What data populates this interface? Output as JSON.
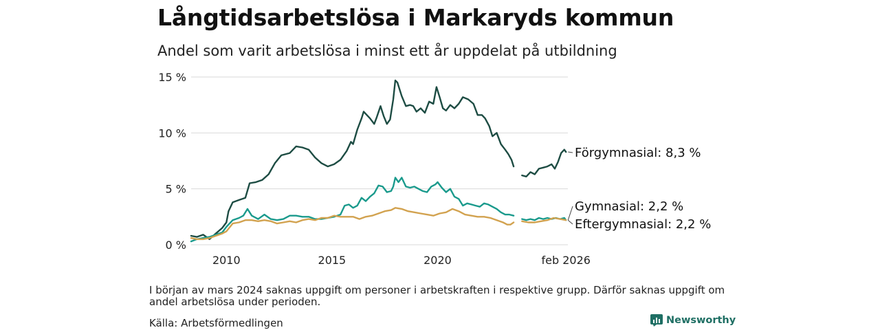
{
  "header": {
    "title": "Långtidsarbetslösa i Markaryds kommun",
    "subtitle": "Andel som varit arbetslösa i minst ett år uppdelat på utbildning"
  },
  "footer": {
    "note": "I början av mars 2024 saknas uppgift om personer i arbetskraften i respektive grupp. Därför saknas uppgift om andel arbetslösa under perioden.",
    "source": "Källa: Arbetsförmedlingen",
    "brand": "Newsworthy"
  },
  "colors": {
    "forgymnasial": "#1d4c43",
    "gymnasial": "#1a9a8c",
    "eftergymnasial": "#d2a24f",
    "grid": "#d9d9d9",
    "brand": "#1f6f64"
  },
  "chart_data": {
    "type": "line",
    "title": "Långtidsarbetslösa i Markaryds kommun",
    "subtitle": "Andel som varit arbetslösa i minst ett år uppdelat på utbildning",
    "xlabel": "",
    "ylabel": "",
    "xlim": [
      2008.33,
      2026.17
    ],
    "ylim": [
      0,
      15
    ],
    "y_ticks": [
      0,
      5,
      10,
      15
    ],
    "y_tick_labels": [
      "0 %",
      "5 %",
      "10 %",
      "15 %"
    ],
    "x_ticks": [
      2010,
      2015,
      2020,
      2026.08
    ],
    "x_tick_labels": [
      "2010",
      "2015",
      "2020",
      "feb 2026"
    ],
    "grid": true,
    "gap": [
      2023.6,
      2024.0
    ],
    "series": [
      {
        "name": "Förgymnasial",
        "end_label": "Förgymnasial: 8,3 %",
        "color": "#1d4c43",
        "points": [
          [
            2008.33,
            0.8
          ],
          [
            2008.6,
            0.7
          ],
          [
            2008.9,
            0.9
          ],
          [
            2009.2,
            0.5
          ],
          [
            2009.5,
            1.0
          ],
          [
            2009.8,
            1.5
          ],
          [
            2010.0,
            2.0
          ],
          [
            2010.1,
            3.0
          ],
          [
            2010.3,
            3.8
          ],
          [
            2010.6,
            4.0
          ],
          [
            2010.9,
            4.2
          ],
          [
            2011.1,
            5.5
          ],
          [
            2011.4,
            5.6
          ],
          [
            2011.7,
            5.8
          ],
          [
            2012.0,
            6.3
          ],
          [
            2012.3,
            7.3
          ],
          [
            2012.6,
            8.0
          ],
          [
            2013.0,
            8.2
          ],
          [
            2013.3,
            8.8
          ],
          [
            2013.6,
            8.7
          ],
          [
            2013.9,
            8.5
          ],
          [
            2014.2,
            7.8
          ],
          [
            2014.5,
            7.3
          ],
          [
            2014.8,
            7.0
          ],
          [
            2015.1,
            7.2
          ],
          [
            2015.4,
            7.6
          ],
          [
            2015.7,
            8.4
          ],
          [
            2015.9,
            9.2
          ],
          [
            2016.0,
            9.0
          ],
          [
            2016.2,
            10.3
          ],
          [
            2016.4,
            11.3
          ],
          [
            2016.5,
            11.9
          ],
          [
            2016.65,
            11.6
          ],
          [
            2016.8,
            11.3
          ],
          [
            2017.0,
            10.8
          ],
          [
            2017.1,
            11.3
          ],
          [
            2017.3,
            12.4
          ],
          [
            2017.45,
            11.5
          ],
          [
            2017.6,
            10.8
          ],
          [
            2017.75,
            11.2
          ],
          [
            2017.9,
            13.0
          ],
          [
            2018.0,
            14.7
          ],
          [
            2018.1,
            14.5
          ],
          [
            2018.3,
            13.3
          ],
          [
            2018.5,
            12.4
          ],
          [
            2018.7,
            12.5
          ],
          [
            2018.85,
            12.4
          ],
          [
            2019.0,
            11.9
          ],
          [
            2019.2,
            12.2
          ],
          [
            2019.4,
            11.8
          ],
          [
            2019.6,
            12.8
          ],
          [
            2019.8,
            12.6
          ],
          [
            2019.95,
            14.1
          ],
          [
            2020.1,
            13.2
          ],
          [
            2020.25,
            12.2
          ],
          [
            2020.4,
            12.0
          ],
          [
            2020.6,
            12.5
          ],
          [
            2020.8,
            12.2
          ],
          [
            2021.0,
            12.6
          ],
          [
            2021.2,
            13.2
          ],
          [
            2021.45,
            13.0
          ],
          [
            2021.7,
            12.6
          ],
          [
            2021.9,
            11.6
          ],
          [
            2022.1,
            11.6
          ],
          [
            2022.25,
            11.3
          ],
          [
            2022.45,
            10.6
          ],
          [
            2022.6,
            9.7
          ],
          [
            2022.8,
            10.0
          ],
          [
            2023.0,
            9.0
          ],
          [
            2023.2,
            8.5
          ],
          [
            2023.35,
            8.1
          ],
          [
            2023.5,
            7.6
          ],
          [
            2023.6,
            7.0
          ],
          [
            2024.0,
            6.2
          ],
          [
            2024.2,
            6.1
          ],
          [
            2024.4,
            6.5
          ],
          [
            2024.6,
            6.3
          ],
          [
            2024.8,
            6.8
          ],
          [
            2025.0,
            6.9
          ],
          [
            2025.2,
            7.0
          ],
          [
            2025.4,
            7.2
          ],
          [
            2025.55,
            6.8
          ],
          [
            2025.7,
            7.4
          ],
          [
            2025.85,
            8.2
          ],
          [
            2026.0,
            8.5
          ],
          [
            2026.08,
            8.3
          ]
        ]
      },
      {
        "name": "Gymnasial",
        "end_label": "Gymnasial: 2,2 %",
        "color": "#1a9a8c",
        "points": [
          [
            2008.33,
            0.3
          ],
          [
            2008.6,
            0.5
          ],
          [
            2008.9,
            0.6
          ],
          [
            2009.2,
            0.7
          ],
          [
            2009.5,
            0.9
          ],
          [
            2009.8,
            1.1
          ],
          [
            2010.0,
            1.6
          ],
          [
            2010.3,
            2.2
          ],
          [
            2010.6,
            2.4
          ],
          [
            2010.8,
            2.6
          ],
          [
            2011.0,
            3.2
          ],
          [
            2011.2,
            2.6
          ],
          [
            2011.5,
            2.3
          ],
          [
            2011.8,
            2.7
          ],
          [
            2012.1,
            2.3
          ],
          [
            2012.4,
            2.2
          ],
          [
            2012.7,
            2.3
          ],
          [
            2013.0,
            2.6
          ],
          [
            2013.3,
            2.6
          ],
          [
            2013.6,
            2.5
          ],
          [
            2013.9,
            2.5
          ],
          [
            2014.2,
            2.3
          ],
          [
            2014.5,
            2.3
          ],
          [
            2014.8,
            2.4
          ],
          [
            2015.1,
            2.5
          ],
          [
            2015.4,
            2.7
          ],
          [
            2015.6,
            3.5
          ],
          [
            2015.8,
            3.6
          ],
          [
            2016.0,
            3.3
          ],
          [
            2016.2,
            3.5
          ],
          [
            2016.4,
            4.2
          ],
          [
            2016.6,
            3.9
          ],
          [
            2016.8,
            4.3
          ],
          [
            2017.0,
            4.6
          ],
          [
            2017.2,
            5.3
          ],
          [
            2017.4,
            5.2
          ],
          [
            2017.6,
            4.7
          ],
          [
            2017.8,
            4.8
          ],
          [
            2017.9,
            5.2
          ],
          [
            2018.0,
            6.0
          ],
          [
            2018.15,
            5.6
          ],
          [
            2018.3,
            6.0
          ],
          [
            2018.5,
            5.2
          ],
          [
            2018.7,
            5.1
          ],
          [
            2018.9,
            5.2
          ],
          [
            2019.1,
            5.0
          ],
          [
            2019.3,
            4.8
          ],
          [
            2019.5,
            4.7
          ],
          [
            2019.7,
            5.2
          ],
          [
            2019.9,
            5.4
          ],
          [
            2020.0,
            5.6
          ],
          [
            2020.2,
            5.1
          ],
          [
            2020.4,
            4.7
          ],
          [
            2020.6,
            5.0
          ],
          [
            2020.8,
            4.3
          ],
          [
            2021.0,
            4.1
          ],
          [
            2021.2,
            3.5
          ],
          [
            2021.4,
            3.7
          ],
          [
            2021.6,
            3.6
          ],
          [
            2021.8,
            3.5
          ],
          [
            2022.0,
            3.4
          ],
          [
            2022.2,
            3.7
          ],
          [
            2022.4,
            3.6
          ],
          [
            2022.6,
            3.4
          ],
          [
            2022.8,
            3.2
          ],
          [
            2023.0,
            2.9
          ],
          [
            2023.2,
            2.7
          ],
          [
            2023.4,
            2.7
          ],
          [
            2023.6,
            2.6
          ],
          [
            2024.0,
            2.3
          ],
          [
            2024.2,
            2.2
          ],
          [
            2024.4,
            2.3
          ],
          [
            2024.6,
            2.2
          ],
          [
            2024.8,
            2.4
          ],
          [
            2025.0,
            2.3
          ],
          [
            2025.2,
            2.4
          ],
          [
            2025.4,
            2.3
          ],
          [
            2025.6,
            2.4
          ],
          [
            2025.8,
            2.3
          ],
          [
            2026.0,
            2.4
          ],
          [
            2026.08,
            2.2
          ]
        ]
      },
      {
        "name": "Eftergymnasial",
        "end_label": "Eftergymnasial: 2,2 %",
        "color": "#d2a24f",
        "points": [
          [
            2008.33,
            0.6
          ],
          [
            2008.6,
            0.5
          ],
          [
            2008.9,
            0.5
          ],
          [
            2009.2,
            0.6
          ],
          [
            2009.5,
            0.8
          ],
          [
            2009.8,
            1.0
          ],
          [
            2010.0,
            1.2
          ],
          [
            2010.3,
            1.9
          ],
          [
            2010.6,
            2.0
          ],
          [
            2010.9,
            2.2
          ],
          [
            2011.2,
            2.2
          ],
          [
            2011.5,
            2.1
          ],
          [
            2011.8,
            2.2
          ],
          [
            2012.1,
            2.1
          ],
          [
            2012.4,
            1.9
          ],
          [
            2012.7,
            2.0
          ],
          [
            2013.0,
            2.1
          ],
          [
            2013.3,
            2.0
          ],
          [
            2013.6,
            2.2
          ],
          [
            2013.9,
            2.3
          ],
          [
            2014.2,
            2.2
          ],
          [
            2014.5,
            2.4
          ],
          [
            2014.8,
            2.4
          ],
          [
            2015.1,
            2.6
          ],
          [
            2015.4,
            2.5
          ],
          [
            2015.7,
            2.5
          ],
          [
            2016.0,
            2.5
          ],
          [
            2016.3,
            2.3
          ],
          [
            2016.6,
            2.5
          ],
          [
            2016.9,
            2.6
          ],
          [
            2017.2,
            2.8
          ],
          [
            2017.5,
            3.0
          ],
          [
            2017.8,
            3.1
          ],
          [
            2018.0,
            3.3
          ],
          [
            2018.3,
            3.2
          ],
          [
            2018.6,
            3.0
          ],
          [
            2018.9,
            2.9
          ],
          [
            2019.2,
            2.8
          ],
          [
            2019.5,
            2.7
          ],
          [
            2019.8,
            2.6
          ],
          [
            2020.1,
            2.8
          ],
          [
            2020.4,
            2.9
          ],
          [
            2020.7,
            3.2
          ],
          [
            2021.0,
            3.0
          ],
          [
            2021.3,
            2.7
          ],
          [
            2021.6,
            2.6
          ],
          [
            2021.9,
            2.5
          ],
          [
            2022.2,
            2.5
          ],
          [
            2022.5,
            2.4
          ],
          [
            2022.8,
            2.2
          ],
          [
            2023.1,
            2.0
          ],
          [
            2023.3,
            1.8
          ],
          [
            2023.45,
            1.8
          ],
          [
            2023.6,
            2.0
          ],
          [
            2024.0,
            2.1
          ],
          [
            2024.3,
            2.0
          ],
          [
            2024.6,
            2.0
          ],
          [
            2024.9,
            2.1
          ],
          [
            2025.2,
            2.2
          ],
          [
            2025.5,
            2.4
          ],
          [
            2025.8,
            2.3
          ],
          [
            2026.08,
            2.2
          ]
        ]
      }
    ]
  }
}
